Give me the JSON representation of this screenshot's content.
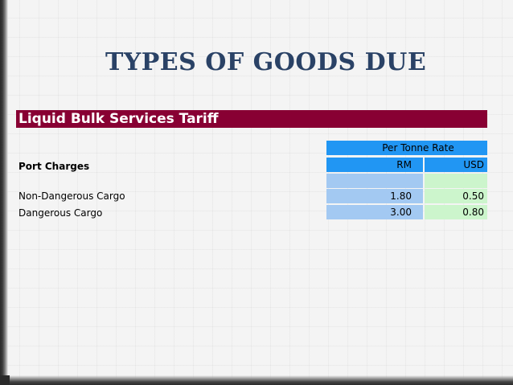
{
  "slide": {
    "title": "TYPES OF GOODS DUE"
  },
  "tariff": {
    "banner": "Liquid Bulk Services Tariff",
    "rate_header": "Per Tonne Rate",
    "section_label": "Port Charges",
    "col_rm": "RM",
    "col_usd": "USD",
    "rows": [
      {
        "label": "Non-Dangerous Cargo",
        "rm": "1.80",
        "usd": "0.50"
      },
      {
        "label": "Dangerous Cargo",
        "rm": "3.00",
        "usd": "0.80"
      }
    ]
  },
  "colors": {
    "title": "#2a4266",
    "banner_bg": "#880033",
    "header_blue": "#2196f3",
    "rm_cell": "#a3c9f2",
    "usd_cell": "#ccf5cc"
  }
}
